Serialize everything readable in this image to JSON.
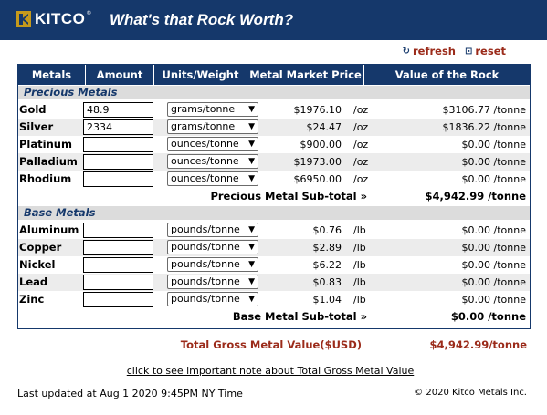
{
  "header": {
    "logo_text": "KITCO",
    "logo_sup": "®",
    "title": "What's that Rock Worth?",
    "background": "#15386b"
  },
  "actions": {
    "refresh_icon": "refresh-icon",
    "refresh_label": "refresh",
    "reset_icon": "reset-icon",
    "reset_label": "reset"
  },
  "table": {
    "columns": [
      "Metals",
      "Amount",
      "Units/Weight",
      "Metal Market Price",
      "Value of the Rock"
    ],
    "precious": {
      "section_label": "Precious Metals",
      "rows": [
        {
          "name": "Gold",
          "amount": "48.9",
          "unit_select": "grams/tonne",
          "price": "$1976.10",
          "per": "/oz",
          "value": "$3106.77 /tonne"
        },
        {
          "name": "Silver",
          "amount": "2334",
          "unit_select": "grams/tonne",
          "price": "$24.47",
          "per": "/oz",
          "value": "$1836.22 /tonne"
        },
        {
          "name": "Platinum",
          "amount": "",
          "unit_select": "ounces/tonne",
          "price": "$900.00",
          "per": "/oz",
          "value": "$0.00 /tonne"
        },
        {
          "name": "Palladium",
          "amount": "",
          "unit_select": "ounces/tonne",
          "price": "$1973.00",
          "per": "/oz",
          "value": "$0.00 /tonne"
        },
        {
          "name": "Rhodium",
          "amount": "",
          "unit_select": "ounces/tonne",
          "price": "$6950.00",
          "per": "/oz",
          "value": "$0.00 /tonne"
        }
      ],
      "subtotal_label": "Precious Metal Sub-total »",
      "subtotal_value": "$4,942.99 /tonne"
    },
    "base": {
      "section_label": "Base Metals",
      "rows": [
        {
          "name": "Aluminum",
          "amount": "",
          "unit_select": "pounds/tonne",
          "price": "$0.76",
          "per": "/lb",
          "value": "$0.00 /tonne"
        },
        {
          "name": "Copper",
          "amount": "",
          "unit_select": "pounds/tonne",
          "price": "$2.89",
          "per": "/lb",
          "value": "$0.00 /tonne"
        },
        {
          "name": "Nickel",
          "amount": "",
          "unit_select": "pounds/tonne",
          "price": "$6.22",
          "per": "/lb",
          "value": "$0.00 /tonne"
        },
        {
          "name": "Lead",
          "amount": "",
          "unit_select": "pounds/tonne",
          "price": "$0.83",
          "per": "/lb",
          "value": "$0.00 /tonne"
        },
        {
          "name": "Zinc",
          "amount": "",
          "unit_select": "pounds/tonne",
          "price": "$1.04",
          "per": "/lb",
          "value": "$0.00 /tonne"
        }
      ],
      "subtotal_label": "Base Metal Sub-total »",
      "subtotal_value": "$0.00 /tonne"
    }
  },
  "gross": {
    "label": "Total Gross Metal Value($USD)",
    "value": "$4,942.99/tonne",
    "color": "#9b2b1a"
  },
  "note_link": "click to see important note about Total Gross Metal Value",
  "footer": {
    "updated": "Last updated at Aug 1 2020 9:45PM NY Time",
    "copyright": "© 2020 Kitco Metals Inc."
  }
}
